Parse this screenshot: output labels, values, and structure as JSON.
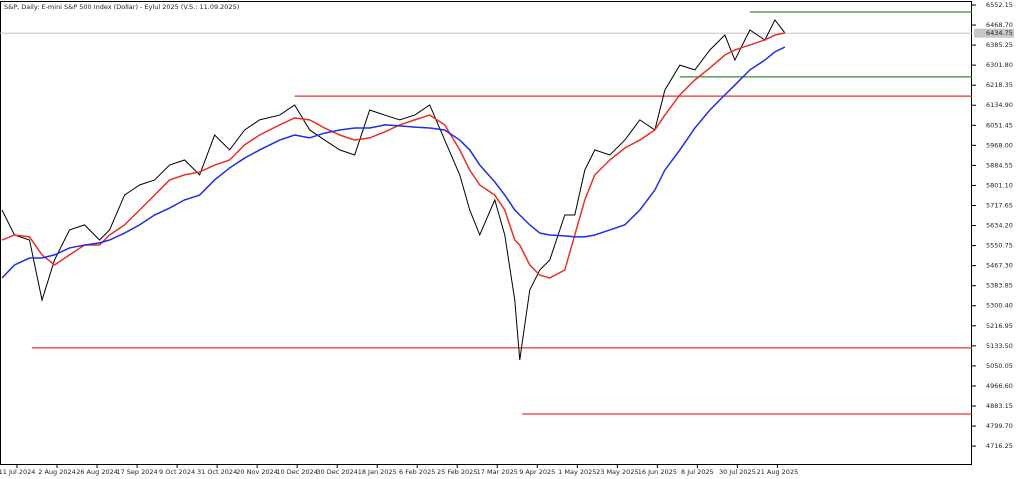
{
  "chart_data": {
    "type": "line",
    "title": "S&P, Daily:  E-mini S&P 500 Index (Dollar) - Eylul 2025 (V.S.: 11.09.2025)",
    "x": [
      -6,
      -1,
      5,
      10,
      15,
      21,
      27,
      33,
      37,
      43,
      49,
      55,
      61,
      67,
      73,
      79,
      85,
      91,
      97,
      105,
      111,
      117,
      123,
      129,
      135,
      141,
      147,
      153,
      159,
      165,
      171,
      177,
      181,
      185,
      191,
      195,
      199,
      201,
      205,
      209,
      213,
      219,
      223,
      227,
      231,
      237,
      243,
      249,
      255,
      259,
      265,
      271,
      277,
      283,
      287,
      293,
      299,
      303,
      307
    ],
    "series": [
      {
        "color": "#000000",
        "values": [
          5699,
          5595,
          5574,
          5324,
          5491,
          5616,
          5637,
          5574,
          5616,
          5761,
          5803,
          5824,
          5886,
          5907,
          5845,
          6011,
          5949,
          6032,
          6074,
          6094,
          6136,
          6032,
          5990,
          5949,
          5928,
          6115,
          6094,
          6074,
          6094,
          6136,
          5990,
          5845,
          5699,
          5595,
          5741,
          5595,
          5324,
          5075,
          5366,
          5449,
          5491,
          5678,
          5678,
          5865,
          5949,
          5928,
          5990,
          6074,
          6032,
          6198,
          6302,
          6282,
          6365,
          6427,
          6323,
          6448,
          6406,
          6490,
          6436
        ]
      },
      {
        "color": "#e8312a",
        "values": [
          5574,
          5595,
          5587,
          5512,
          5470,
          5512,
          5553,
          5553,
          5595,
          5637,
          5699,
          5761,
          5824,
          5845,
          5857,
          5886,
          5907,
          5970,
          6011,
          6053,
          6082,
          6074,
          6040,
          6011,
          5990,
          5999,
          6024,
          6053,
          6074,
          6094,
          6053,
          5949,
          5865,
          5803,
          5761,
          5699,
          5574,
          5553,
          5470,
          5428,
          5416,
          5449,
          5595,
          5741,
          5845,
          5907,
          5957,
          5990,
          6032,
          6094,
          6178,
          6240,
          6290,
          6344,
          6365,
          6386,
          6407,
          6427,
          6436
        ]
      },
      {
        "color": "#1f2fe0",
        "values": [
          5416,
          5470,
          5499,
          5499,
          5512,
          5541,
          5553,
          5562,
          5574,
          5603,
          5637,
          5678,
          5707,
          5741,
          5761,
          5824,
          5874,
          5915,
          5949,
          5990,
          6011,
          5999,
          6019,
          6032,
          6040,
          6040,
          6053,
          6049,
          6044,
          6040,
          6032,
          5990,
          5949,
          5886,
          5816,
          5761,
          5699,
          5678,
          5637,
          5603,
          5595,
          5591,
          5587,
          5587,
          5595,
          5616,
          5637,
          5699,
          5782,
          5865,
          5949,
          6040,
          6115,
          6178,
          6219,
          6282,
          6323,
          6357,
          6377
        ]
      }
    ],
    "levels": [
      {
        "value": 6173,
        "color": "#e8312a",
        "from": 111
      },
      {
        "value": 5125,
        "color": "#e8312a",
        "from": 6
      },
      {
        "value": 4850,
        "color": "#e8312a",
        "from": 202
      },
      {
        "value": 6523,
        "color": "#3d8a2f",
        "from": 293
      },
      {
        "value": 6253,
        "color": "#3d8a2f",
        "from": 265
      }
    ],
    "last_price": 6434.75,
    "xlim": [
      -6.8,
      381.8
    ],
    "ylim": [
      4637.6,
      6564.6
    ],
    "xticks": [
      {
        "value": 0,
        "label": "11 Jul 2024"
      },
      {
        "value": 16,
        "label": "2 Aug 2024"
      },
      {
        "value": 32,
        "label": "26 Aug 2024"
      },
      {
        "value": 48,
        "label": "17 Sep 2024"
      },
      {
        "value": 64,
        "label": "9 Oct 2024"
      },
      {
        "value": 80,
        "label": "31 Oct 2024"
      },
      {
        "value": 96,
        "label": "20 Nov 2024"
      },
      {
        "value": 112,
        "label": "10 Dec 2024"
      },
      {
        "value": 128,
        "label": "30 Dec 2024"
      },
      {
        "value": 144,
        "label": "18 Jan 2025"
      },
      {
        "value": 160,
        "label": "6 Feb 2025"
      },
      {
        "value": 176,
        "label": "25 Feb 2025"
      },
      {
        "value": 192,
        "label": "17 Mar 2025"
      },
      {
        "value": 208,
        "label": "9 Apr 2025"
      },
      {
        "value": 224,
        "label": "1 May 2025"
      },
      {
        "value": 240,
        "label": "23 May 2025"
      },
      {
        "value": 256,
        "label": "16 Jun 2025"
      },
      {
        "value": 272,
        "label": "8 Jul 2025"
      },
      {
        "value": 288,
        "label": "30 Jul 2025"
      },
      {
        "value": 304,
        "label": "21 Aug 2025"
      }
    ],
    "yticks": [
      6552.15,
      {
        "value": 6468.7,
        "label": "6468.70"
      },
      6385.25,
      {
        "value": 6301.8,
        "label": "6301.80"
      },
      6218.35,
      {
        "value": 6134.9,
        "label": "6134.90"
      },
      6051.45,
      {
        "value": 5968,
        "label": "5968.00"
      },
      5884.55,
      {
        "value": 5801.1,
        "label": "5801.10"
      },
      5717.65,
      {
        "value": 5634.2,
        "label": "5634.20"
      },
      5550.75,
      {
        "value": 5467.3,
        "label": "5467.30"
      },
      5383.85,
      {
        "value": 5300.4,
        "label": "5300.40"
      },
      5216.95,
      {
        "value": 5133.5,
        "label": "5133.50"
      },
      5050.05,
      {
        "value": 4966.6,
        "label": "4966.60"
      },
      4883.15,
      {
        "value": 4799.7,
        "label": "4799.70"
      },
      4716.25
    ]
  }
}
